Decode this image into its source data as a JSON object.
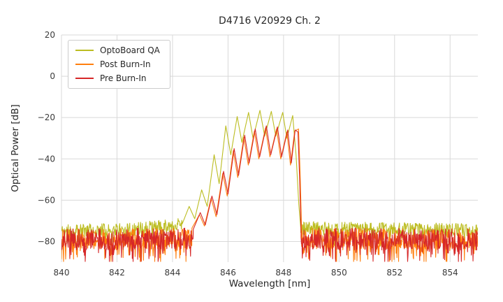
{
  "chart_data": {
    "type": "line",
    "title": "D4716 V20929 Ch. 2",
    "xlabel": "Wavelength [nm]",
    "ylabel": "Optical Power [dB]",
    "xlim": [
      840,
      855
    ],
    "ylim": [
      -90,
      20
    ],
    "xticks": [
      840,
      842,
      844,
      846,
      848,
      850,
      852,
      854
    ],
    "yticks": [
      20,
      0,
      -20,
      -40,
      -60,
      -80
    ],
    "grid": true,
    "grid_color": "#d9d9d9",
    "legend_position": "upper left",
    "noise_floor_note": "broadband noise floor approx -70 to -90 dB across full span",
    "series": [
      {
        "name": "OptoBoard QA",
        "color": "#bcbd22",
        "seed": 11,
        "noise_pre": {
          "profile": [
            [
              840,
              -75
            ],
            [
              842.6,
              -74
            ],
            [
              844.35,
              -71.5
            ]
          ],
          "half_range": 3.2,
          "dip_prob": 0.12,
          "dip_max": 6
        },
        "noise_post": {
          "profile": [
            [
              848.62,
              -73.5
            ],
            [
              855,
              -74.5
            ]
          ],
          "half_range": 3.2,
          "dip_prob": 0.12,
          "dip_max": 6
        },
        "envelope": [
          [
            844.35,
            -71.5
          ],
          [
            844.6,
            -63
          ],
          [
            844.8,
            -69
          ],
          [
            845.05,
            -55
          ],
          [
            845.25,
            -63
          ],
          [
            845.5,
            -38
          ],
          [
            845.68,
            -52
          ],
          [
            845.92,
            -24
          ],
          [
            846.1,
            -38
          ],
          [
            846.33,
            -19.5
          ],
          [
            846.5,
            -32
          ],
          [
            846.74,
            -17.5
          ],
          [
            846.9,
            -30
          ],
          [
            847.15,
            -16.5
          ],
          [
            847.32,
            -29
          ],
          [
            847.56,
            -17
          ],
          [
            847.72,
            -29
          ],
          [
            847.97,
            -17.5
          ],
          [
            848.12,
            -30
          ],
          [
            848.33,
            -19
          ],
          [
            848.45,
            -38
          ],
          [
            848.55,
            -62
          ],
          [
            848.62,
            -73.5
          ]
        ]
      },
      {
        "name": "Post Burn-In",
        "color": "#ff7f0e",
        "seed": 23,
        "noise_pre": {
          "profile": [
            [
              840,
              -78.8
            ],
            [
              844.7,
              -78.5
            ]
          ],
          "half_range": 5.0,
          "dip_prob": 0.28,
          "dip_max": 9
        },
        "noise_post": {
          "profile": [
            [
              848.65,
              -78.5
            ],
            [
              855,
              -78.8
            ]
          ],
          "half_range": 5.0,
          "dip_prob": 0.28,
          "dip_max": 9
        },
        "envelope": [
          [
            844.7,
            -73.5
          ],
          [
            844.97,
            -67
          ],
          [
            845.15,
            -72.5
          ],
          [
            845.39,
            -59
          ],
          [
            845.57,
            -68
          ],
          [
            845.81,
            -47
          ],
          [
            845.97,
            -58
          ],
          [
            846.19,
            -36
          ],
          [
            846.35,
            -49
          ],
          [
            846.57,
            -29.5
          ],
          [
            846.73,
            -43
          ],
          [
            846.95,
            -26.5
          ],
          [
            847.11,
            -40
          ],
          [
            847.35,
            -25
          ],
          [
            847.51,
            -39
          ],
          [
            847.75,
            -25.5
          ],
          [
            847.9,
            -40
          ],
          [
            848.12,
            -27
          ],
          [
            848.25,
            -43
          ],
          [
            848.4,
            -26.5
          ],
          [
            848.54,
            -25.5
          ],
          [
            848.6,
            -48
          ],
          [
            848.65,
            -74
          ]
        ]
      },
      {
        "name": "Pre Burn-In",
        "color": "#d62728",
        "seed": 37,
        "noise_pre": {
          "profile": [
            [
              840,
              -79
            ],
            [
              844.75,
              -78.5
            ]
          ],
          "half_range": 5.2,
          "dip_prob": 0.3,
          "dip_max": 9
        },
        "noise_post": {
          "profile": [
            [
              848.63,
              -78.5
            ],
            [
              855,
              -79
            ]
          ],
          "half_range": 5.2,
          "dip_prob": 0.3,
          "dip_max": 9
        },
        "envelope": [
          [
            844.75,
            -74
          ],
          [
            845.0,
            -66
          ],
          [
            845.18,
            -72
          ],
          [
            845.42,
            -58
          ],
          [
            845.6,
            -67
          ],
          [
            845.84,
            -46
          ],
          [
            846.0,
            -57
          ],
          [
            846.22,
            -35
          ],
          [
            846.38,
            -48
          ],
          [
            846.6,
            -28.5
          ],
          [
            846.76,
            -42
          ],
          [
            846.98,
            -25.5
          ],
          [
            847.14,
            -39
          ],
          [
            847.38,
            -24
          ],
          [
            847.54,
            -38
          ],
          [
            847.78,
            -24.5
          ],
          [
            847.93,
            -39
          ],
          [
            848.15,
            -26
          ],
          [
            848.28,
            -42
          ],
          [
            848.42,
            -26
          ],
          [
            848.52,
            -27
          ],
          [
            848.58,
            -50
          ],
          [
            848.63,
            -75
          ]
        ]
      }
    ]
  }
}
